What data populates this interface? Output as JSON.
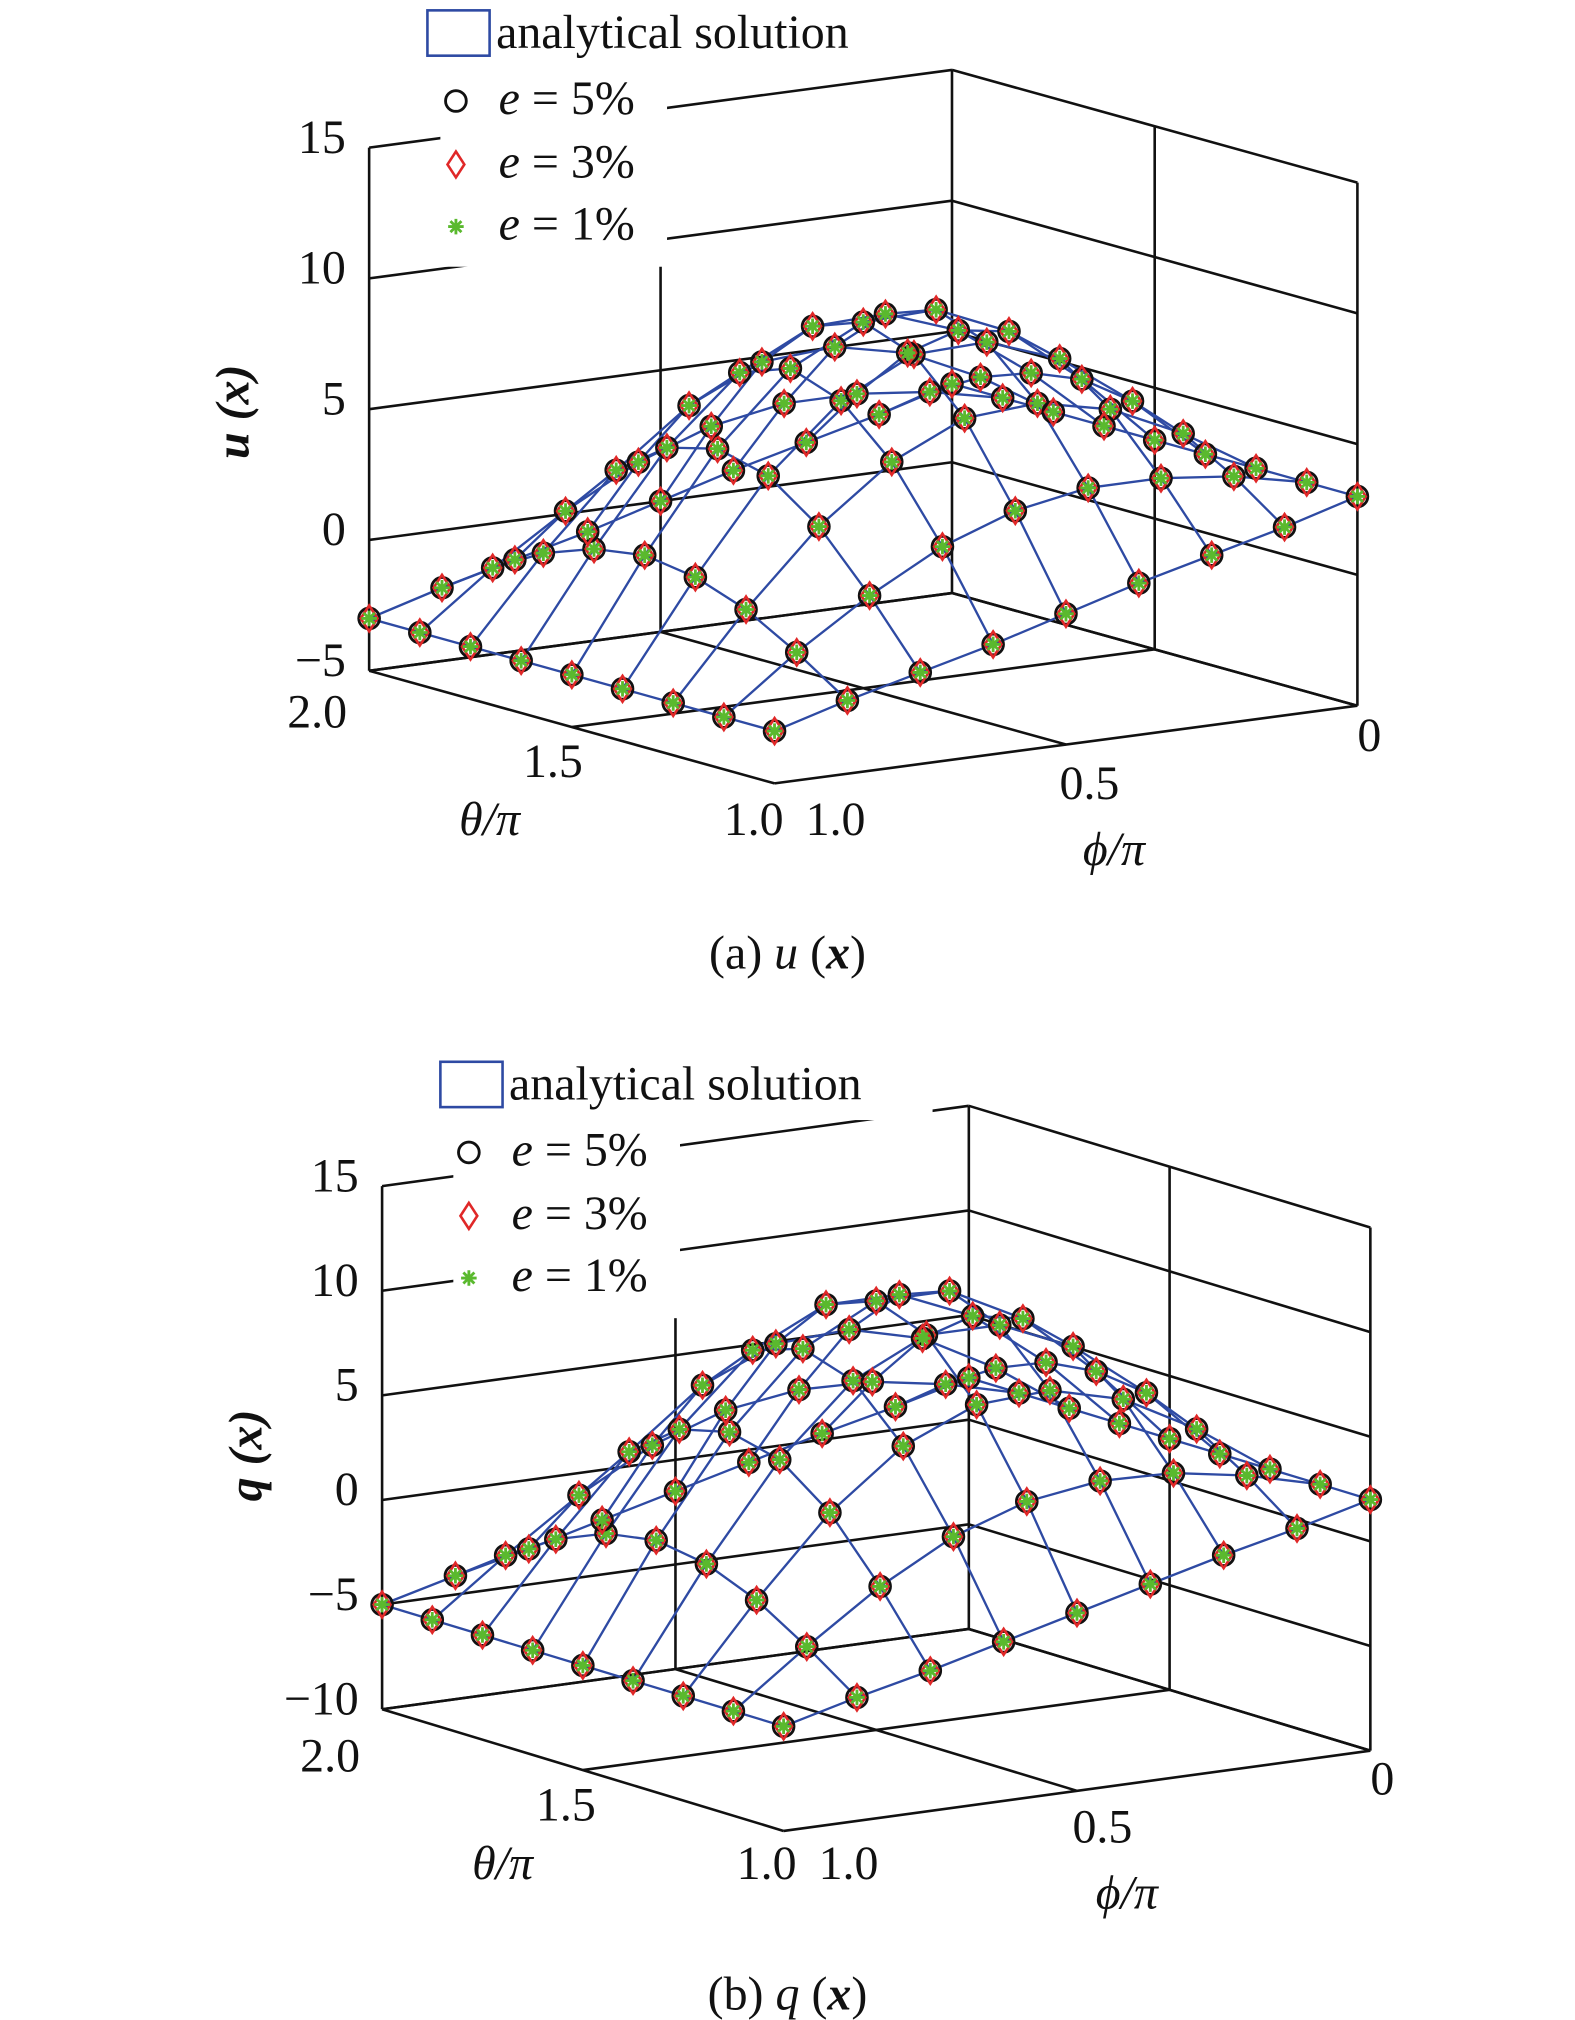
{
  "chart_data": [
    {
      "type": "surface3d",
      "caption": "(a) u (x)",
      "zlabel": "u (x)",
      "xlabel": "θ/π",
      "ylabel": "ϕ/π",
      "theta_range": [
        1.0,
        2.0
      ],
      "phi_range": [
        0,
        1.0
      ],
      "zlim": [
        -5,
        15
      ],
      "zticks": [
        -5,
        0,
        5,
        10,
        15
      ],
      "ztick_labels": [
        "−5",
        "0",
        "5",
        "10",
        "15"
      ],
      "theta_tick_labels": [
        "2.0",
        "1.5",
        "1.0"
      ],
      "phi_tick_labels": [
        "1.0",
        "0.5",
        "0"
      ],
      "grid": true,
      "theta": [
        1.0,
        1.125,
        1.25,
        1.375,
        1.5,
        1.625,
        1.75,
        1.875,
        2.0
      ],
      "phi": [
        0,
        0.125,
        0.25,
        0.375,
        0.5,
        0.625,
        0.75,
        0.875,
        1.0
      ],
      "z": [
        [
          3.0,
          2.2,
          1.5,
          0.8,
          0.0,
          -0.8,
          -1.5,
          -2.2,
          -3.0
        ],
        [
          3.0,
          3.6,
          3.9,
          3.9,
          3.4,
          2.4,
          0.9,
          -0.9,
          -3.0
        ],
        [
          3.0,
          4.7,
          6.0,
          6.6,
          6.4,
          5.1,
          3.0,
          0.2,
          -3.0
        ],
        [
          3.0,
          5.4,
          7.4,
          8.4,
          8.3,
          6.9,
          4.4,
          0.9,
          -3.0
        ],
        [
          3.0,
          5.7,
          7.9,
          9.1,
          9.0,
          7.6,
          4.9,
          1.2,
          -3.0
        ],
        [
          3.0,
          5.4,
          7.4,
          8.4,
          8.3,
          6.9,
          4.4,
          0.9,
          -3.0
        ],
        [
          3.0,
          4.7,
          6.0,
          6.6,
          6.4,
          5.1,
          3.0,
          0.2,
          -3.0
        ],
        [
          3.0,
          3.6,
          3.9,
          3.9,
          3.4,
          2.4,
          0.9,
          -0.9,
          -3.0
        ],
        [
          3.0,
          2.2,
          1.5,
          0.8,
          0.0,
          -0.8,
          -1.5,
          -2.2,
          -3.0
        ]
      ],
      "series": [
        {
          "name": "analytical solution",
          "style": "mesh",
          "color": "#2e4aa3"
        },
        {
          "name": "e = 5%",
          "marker": "circle",
          "color": "#111111"
        },
        {
          "name": "e = 3%",
          "marker": "diamond",
          "color": "#e02828"
        },
        {
          "name": "e = 1%",
          "marker": "star",
          "color": "#5ab92e"
        }
      ],
      "legend": "top-left"
    },
    {
      "type": "surface3d",
      "caption": "(b) q (x)",
      "zlabel": "q (x)",
      "xlabel": "θ/π",
      "ylabel": "ϕ/π",
      "theta_range": [
        1.0,
        2.0
      ],
      "phi_range": [
        0,
        1.0
      ],
      "zlim": [
        -10,
        15
      ],
      "zticks": [
        -10,
        -5,
        0,
        5,
        10,
        15
      ],
      "ztick_labels": [
        "−10",
        "−5",
        "0",
        "5",
        "10",
        "15"
      ],
      "theta_tick_labels": [
        "2.0",
        "1.5",
        "1.0"
      ],
      "phi_tick_labels": [
        "1.0",
        "0.5",
        "0"
      ],
      "grid": true,
      "theta": [
        1.0,
        1.125,
        1.25,
        1.375,
        1.5,
        1.625,
        1.75,
        1.875,
        2.0
      ],
      "phi": [
        0,
        0.125,
        0.25,
        0.375,
        0.5,
        0.625,
        0.75,
        0.875,
        1.0
      ],
      "z": [
        [
          2.0,
          1.1,
          0.3,
          -0.6,
          -1.5,
          -2.4,
          -3.3,
          -4.1,
          -5.0
        ],
        [
          2.0,
          2.9,
          3.5,
          3.6,
          3.1,
          1.9,
          0.0,
          -2.4,
          -5.0
        ],
        [
          2.0,
          4.4,
          6.3,
          7.2,
          7.0,
          5.5,
          2.8,
          -0.9,
          -5.0
        ],
        [
          2.0,
          5.4,
          8.1,
          9.6,
          9.6,
          7.9,
          4.6,
          0.1,
          -5.0
        ],
        [
          2.0,
          5.7,
          8.7,
          10.5,
          10.5,
          8.7,
          5.2,
          0.5,
          -5.0
        ],
        [
          2.0,
          5.4,
          8.1,
          9.6,
          9.6,
          7.9,
          4.6,
          0.1,
          -5.0
        ],
        [
          2.0,
          4.4,
          6.3,
          7.2,
          7.0,
          5.5,
          2.8,
          -0.9,
          -5.0
        ],
        [
          2.0,
          2.9,
          3.5,
          3.6,
          3.1,
          1.9,
          0.0,
          -2.4,
          -5.0
        ],
        [
          2.0,
          1.1,
          0.3,
          -0.6,
          -1.5,
          -2.4,
          -3.3,
          -4.1,
          -5.0
        ]
      ],
      "series": [
        {
          "name": "analytical solution",
          "style": "mesh",
          "color": "#2e4aa3"
        },
        {
          "name": "e = 5%",
          "marker": "circle",
          "color": "#111111"
        },
        {
          "name": "e = 3%",
          "marker": "diamond",
          "color": "#e02828"
        },
        {
          "name": "e = 1%",
          "marker": "star",
          "color": "#5ab92e"
        }
      ],
      "legend": "top-left"
    }
  ]
}
